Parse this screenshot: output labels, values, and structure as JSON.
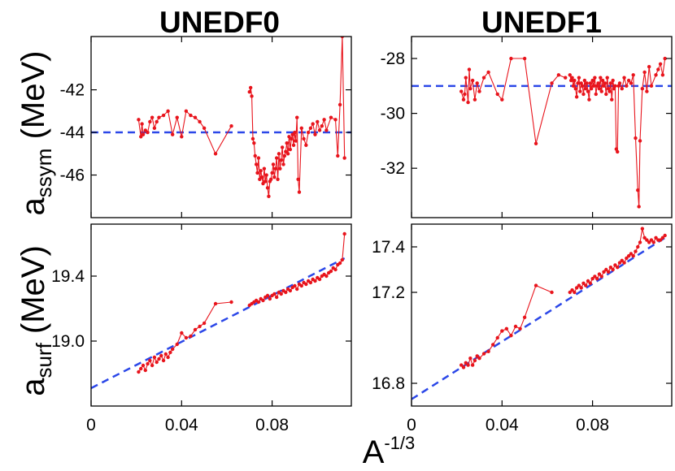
{
  "colors": {
    "data": "#e8141c",
    "fit": "#2b47e8",
    "axis": "#000000"
  },
  "columns": [
    "UNEDF0",
    "UNEDF1"
  ],
  "y_labels": {
    "top": {
      "prefix": "a",
      "sub": "ssym",
      "suffix": " (MeV)"
    },
    "bottom": {
      "prefix": "a",
      "sub": "surf",
      "suffix": " (MeV)"
    }
  },
  "x_label": {
    "base": "A",
    "sup": "-1/3"
  },
  "chart_data": [
    {
      "type": "line",
      "column": "UNEDF0",
      "quantity": "assym",
      "xlim": [
        0,
        0.115
      ],
      "ylim": [
        -48,
        -39.5
      ],
      "xticks": [
        0,
        0.04,
        0.08
      ],
      "xtick_labels": [
        "0",
        "0.04",
        "0.08"
      ],
      "yticks": [
        -46,
        -44,
        -42
      ],
      "ytick_labels": [
        "-46",
        "-44",
        "-42"
      ],
      "fit": {
        "style": "dashed",
        "y": -44.0
      },
      "series": [
        {
          "x": [
            0.021,
            0.022,
            0.0225,
            0.023,
            0.024,
            0.025,
            0.026,
            0.027,
            0.028,
            0.029,
            0.03,
            0.032,
            0.034,
            0.036,
            0.038,
            0.04,
            0.042,
            0.044,
            0.046,
            0.048,
            0.05,
            0.055,
            0.062
          ],
          "y": [
            -43.4,
            -44.2,
            -43.6,
            -44.1,
            -43.9,
            -44.0,
            -43.5,
            -43.3,
            -43.8,
            -43.5,
            -43.3,
            -43.2,
            -43.0,
            -44.1,
            -43.3,
            -44.2,
            -43.0,
            -43.2,
            -43.3,
            -43.5,
            -43.8,
            -45.0,
            -43.7
          ]
        },
        {
          "x": [
            0.07,
            0.0705,
            0.071,
            0.0715,
            0.072,
            0.0725,
            0.073,
            0.0735,
            0.074,
            0.0745,
            0.075,
            0.0755,
            0.076,
            0.0765,
            0.077,
            0.0775,
            0.078,
            0.0785,
            0.079,
            0.0795,
            0.08,
            0.0805,
            0.081,
            0.0815,
            0.082,
            0.0825,
            0.083,
            0.0835,
            0.084,
            0.0845,
            0.085,
            0.0855,
            0.086,
            0.0865,
            0.087,
            0.0875,
            0.088,
            0.0885,
            0.089,
            0.0895,
            0.09,
            0.0905,
            0.091,
            0.0915,
            0.092,
            0.093,
            0.094,
            0.095,
            0.096,
            0.097,
            0.098,
            0.099,
            0.1,
            0.101,
            0.102,
            0.103,
            0.104,
            0.106,
            0.108,
            0.109,
            0.11,
            0.111,
            0.112
          ],
          "y": [
            -42.1,
            -41.9,
            -42.3,
            -44.3,
            -44.5,
            -45.1,
            -45.5,
            -45.9,
            -45.2,
            -46.2,
            -45.8,
            -46.1,
            -46.4,
            -45.7,
            -46.3,
            -46.0,
            -46.6,
            -47.0,
            -46.3,
            -46.2,
            -45.9,
            -45.5,
            -46.1,
            -45.7,
            -45.2,
            -46.2,
            -45.0,
            -45.7,
            -45.3,
            -44.7,
            -45.5,
            -45.1,
            -44.9,
            -44.5,
            -45.0,
            -44.2,
            -44.8,
            -44.3,
            -44.1,
            -44.6,
            -44.0,
            -44.4,
            -43.3,
            -46.2,
            -46.8,
            -43.8,
            -44.3,
            -44.6,
            -44.0,
            -43.8,
            -43.6,
            -44.1,
            -43.5,
            -43.9,
            -43.7,
            -43.4,
            -43.9,
            -43.3,
            -43.4,
            -45.1,
            -42.7,
            -39.5,
            -45.2
          ]
        }
      ]
    },
    {
      "type": "line",
      "column": "UNEDF1",
      "quantity": "assym",
      "xlim": [
        0,
        0.115
      ],
      "ylim": [
        -33.8,
        -27.2
      ],
      "xticks": [
        0,
        0.04,
        0.08
      ],
      "xtick_labels": [
        "0",
        "0.04",
        "0.08"
      ],
      "yticks": [
        -32,
        -30,
        -28
      ],
      "ytick_labels": [
        "-32",
        "-30",
        "-28"
      ],
      "fit": {
        "style": "dashed",
        "y": -29.0
      },
      "series": [
        {
          "x": [
            0.022,
            0.023,
            0.0235,
            0.024,
            0.025,
            0.0255,
            0.026,
            0.027,
            0.028,
            0.029,
            0.03,
            0.032,
            0.034,
            0.038,
            0.04,
            0.044,
            0.05,
            0.055,
            0.062,
            0.065,
            0.068
          ],
          "y": [
            -29.2,
            -29.5,
            -29.3,
            -28.7,
            -29.6,
            -28.4,
            -29.1,
            -28.8,
            -29.5,
            -28.9,
            -29.2,
            -28.7,
            -28.5,
            -29.3,
            -29.5,
            -28.0,
            -28.0,
            -31.1,
            -28.9,
            -28.6,
            -28.7
          ]
        },
        {
          "x": [
            0.07,
            0.0705,
            0.071,
            0.0715,
            0.072,
            0.0725,
            0.073,
            0.0735,
            0.074,
            0.0745,
            0.075,
            0.0755,
            0.076,
            0.0765,
            0.077,
            0.0775,
            0.078,
            0.0785,
            0.079,
            0.0795,
            0.08,
            0.0805,
            0.081,
            0.0815,
            0.082,
            0.0825,
            0.083,
            0.0835,
            0.084,
            0.0845,
            0.085,
            0.0855,
            0.086,
            0.0865,
            0.087,
            0.0875,
            0.088,
            0.0885,
            0.089,
            0.0895,
            0.09,
            0.0905,
            0.091,
            0.0915,
            0.092,
            0.093,
            0.094,
            0.095,
            0.096,
            0.097,
            0.098,
            0.099,
            0.1,
            0.1005,
            0.101,
            0.102,
            0.103,
            0.104,
            0.105,
            0.106,
            0.108,
            0.109,
            0.11,
            0.111,
            0.112
          ],
          "y": [
            -28.6,
            -28.8,
            -28.7,
            -29.0,
            -28.8,
            -29.1,
            -29.4,
            -28.9,
            -28.7,
            -29.2,
            -28.9,
            -29.0,
            -29.3,
            -28.8,
            -29.1,
            -28.9,
            -29.2,
            -29.5,
            -28.9,
            -29.1,
            -28.8,
            -29.0,
            -28.7,
            -29.3,
            -29.0,
            -28.9,
            -29.1,
            -28.7,
            -29.2,
            -28.8,
            -29.0,
            -28.9,
            -29.3,
            -28.7,
            -29.1,
            -29.2,
            -28.9,
            -29.5,
            -28.8,
            -29.1,
            -29.0,
            -31.3,
            -31.4,
            -29.0,
            -28.9,
            -29.1,
            -28.7,
            -29.0,
            -28.8,
            -28.9,
            -28.6,
            -30.9,
            -32.8,
            -33.4,
            -31.0,
            -29.1,
            -28.5,
            -29.2,
            -28.3,
            -29.0,
            -28.6,
            -28.4,
            -28.2,
            -28.6,
            -28.0
          ]
        }
      ]
    },
    {
      "type": "line",
      "column": "UNEDF0",
      "quantity": "asurf",
      "xlim": [
        0,
        0.115
      ],
      "ylim": [
        18.6,
        19.72
      ],
      "xticks": [
        0,
        0.04,
        0.08
      ],
      "xtick_labels": [
        "0",
        "0.04",
        "0.08"
      ],
      "yticks": [
        19.0,
        19.4
      ],
      "ytick_labels": [
        "19.0",
        "19.4"
      ],
      "fit": {
        "style": "dashed",
        "x": [
          0,
          0.112
        ],
        "y": [
          18.71,
          19.51
        ]
      },
      "series": [
        {
          "x": [
            0.021,
            0.022,
            0.023,
            0.024,
            0.025,
            0.026,
            0.027,
            0.028,
            0.029,
            0.03,
            0.031,
            0.032,
            0.033,
            0.034,
            0.035,
            0.036,
            0.038,
            0.04,
            0.042,
            0.044,
            0.046,
            0.048,
            0.05,
            0.055,
            0.062
          ],
          "y": [
            18.81,
            18.83,
            18.85,
            18.82,
            18.86,
            18.88,
            18.85,
            18.9,
            18.87,
            18.89,
            18.91,
            18.88,
            18.92,
            18.9,
            18.93,
            18.95,
            18.98,
            19.05,
            19.02,
            19.03,
            19.07,
            19.09,
            19.11,
            19.23,
            19.24
          ]
        },
        {
          "x": [
            0.07,
            0.071,
            0.072,
            0.073,
            0.074,
            0.075,
            0.076,
            0.077,
            0.078,
            0.079,
            0.08,
            0.081,
            0.082,
            0.083,
            0.084,
            0.085,
            0.086,
            0.087,
            0.088,
            0.089,
            0.09,
            0.091,
            0.092,
            0.093,
            0.094,
            0.095,
            0.096,
            0.097,
            0.098,
            0.099,
            0.1,
            0.101,
            0.102,
            0.103,
            0.104,
            0.105,
            0.106,
            0.107,
            0.108,
            0.109,
            0.11,
            0.111,
            0.112
          ],
          "y": [
            19.22,
            19.23,
            19.24,
            19.25,
            19.24,
            19.26,
            19.25,
            19.27,
            19.28,
            19.26,
            19.28,
            19.29,
            19.27,
            19.3,
            19.29,
            19.31,
            19.3,
            19.32,
            19.31,
            19.33,
            19.34,
            19.32,
            19.35,
            19.34,
            19.36,
            19.35,
            19.37,
            19.36,
            19.38,
            19.37,
            19.39,
            19.38,
            19.4,
            19.41,
            19.4,
            19.42,
            19.43,
            19.45,
            19.44,
            19.47,
            19.48,
            19.5,
            19.66
          ]
        }
      ]
    },
    {
      "type": "line",
      "column": "UNEDF1",
      "quantity": "asurf",
      "xlim": [
        0,
        0.115
      ],
      "ylim": [
        16.7,
        17.5
      ],
      "xticks": [
        0,
        0.04,
        0.08
      ],
      "xtick_labels": [
        "0",
        "0.04",
        "0.08"
      ],
      "yticks": [
        16.8,
        17.2,
        17.4
      ],
      "ytick_labels": [
        "16.8",
        "17.2",
        "17.4"
      ],
      "fit": {
        "style": "dashed",
        "x": [
          0,
          0.112
        ],
        "y": [
          16.73,
          17.44
        ]
      },
      "series": [
        {
          "x": [
            0.022,
            0.023,
            0.024,
            0.025,
            0.026,
            0.027,
            0.028,
            0.029,
            0.03,
            0.032,
            0.034,
            0.036,
            0.038,
            0.04,
            0.042,
            0.044,
            0.046,
            0.048,
            0.05,
            0.055,
            0.062
          ],
          "y": [
            16.88,
            16.87,
            16.89,
            16.88,
            16.91,
            16.88,
            16.9,
            16.92,
            16.91,
            16.93,
            16.94,
            16.97,
            17.0,
            17.03,
            17.04,
            17.01,
            17.05,
            17.04,
            17.09,
            17.23,
            17.2
          ]
        },
        {
          "x": [
            0.07,
            0.071,
            0.072,
            0.073,
            0.074,
            0.075,
            0.076,
            0.077,
            0.078,
            0.079,
            0.08,
            0.081,
            0.082,
            0.083,
            0.084,
            0.085,
            0.086,
            0.087,
            0.088,
            0.089,
            0.09,
            0.091,
            0.092,
            0.093,
            0.094,
            0.095,
            0.096,
            0.097,
            0.098,
            0.099,
            0.1,
            0.101,
            0.102,
            0.103,
            0.104,
            0.105,
            0.106,
            0.107,
            0.108,
            0.109,
            0.11,
            0.111,
            0.112
          ],
          "y": [
            17.2,
            17.21,
            17.2,
            17.22,
            17.23,
            17.22,
            17.24,
            17.23,
            17.25,
            17.24,
            17.26,
            17.27,
            17.26,
            17.28,
            17.27,
            17.29,
            17.3,
            17.29,
            17.31,
            17.3,
            17.32,
            17.31,
            17.33,
            17.34,
            17.33,
            17.35,
            17.36,
            17.37,
            17.36,
            17.38,
            17.4,
            17.42,
            17.48,
            17.44,
            17.43,
            17.42,
            17.43,
            17.42,
            17.44,
            17.43,
            17.43,
            17.44,
            17.45
          ]
        }
      ]
    }
  ]
}
